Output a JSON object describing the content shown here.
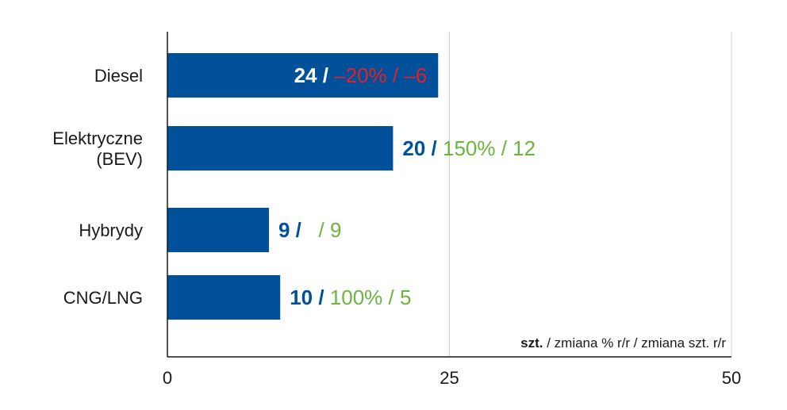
{
  "chart_data": {
    "type": "bar",
    "orientation": "horizontal",
    "categories": [
      [
        "Diesel"
      ],
      [
        "Elektryczne",
        "(BEV)"
      ],
      [
        "Hybrydy"
      ],
      [
        "CNG/LNG"
      ]
    ],
    "values": [
      24,
      20,
      9,
      10
    ],
    "data_labels": [
      {
        "value": "24",
        "pct_change": "–20%",
        "unit_change": "–6",
        "label_inside_bar": true,
        "change_color": "#e4202a"
      },
      {
        "value": "20",
        "pct_change": "150%",
        "unit_change": "12",
        "label_inside_bar": false,
        "change_color": "#6cb33f"
      },
      {
        "value": "9",
        "pct_change": "",
        "unit_change": "9",
        "label_inside_bar": false,
        "change_color": "#6cb33f"
      },
      {
        "value": "10",
        "pct_change": "100%",
        "unit_change": "5",
        "label_inside_bar": false,
        "change_color": "#6cb33f"
      }
    ],
    "xlim": [
      0,
      50
    ],
    "ticks": [
      0,
      25,
      50
    ],
    "grid": true,
    "unit_note": {
      "bold": "szt.",
      "rest": " / zmiana % r/r / zmiana szt. r/r"
    },
    "colors": {
      "bar": "#00519a",
      "value_inside": "#ffffff",
      "value_outside": "#00519a",
      "grid": "#d0d0d0",
      "axis": "#1a1a1a"
    }
  }
}
